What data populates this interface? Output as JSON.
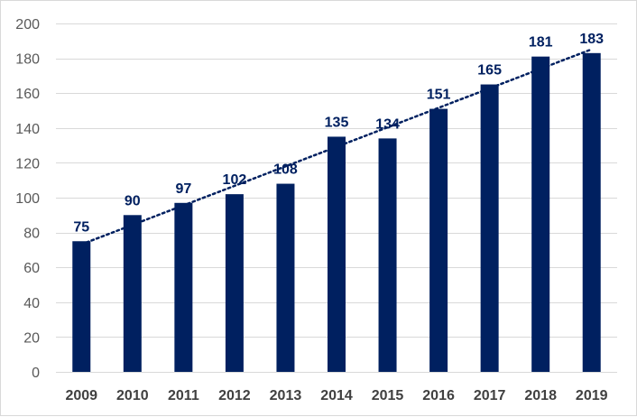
{
  "chart_data": {
    "type": "bar",
    "title": "",
    "xlabel": "",
    "ylabel": "",
    "categories": [
      "2009",
      "2010",
      "2011",
      "2012",
      "2013",
      "2014",
      "2015",
      "2016",
      "2017",
      "2018",
      "2019"
    ],
    "values": [
      75,
      90,
      97,
      102,
      108,
      135,
      134,
      151,
      165,
      181,
      183
    ],
    "data_labels": [
      "75",
      "90",
      "97",
      "102",
      "108",
      "135",
      "134",
      "151",
      "165",
      "181",
      "183"
    ],
    "ylim": [
      0,
      200
    ],
    "yticks": [
      0,
      20,
      40,
      60,
      80,
      100,
      120,
      140,
      160,
      180,
      200
    ],
    "grid": true,
    "legend": "none",
    "trendline": "linear, dotted",
    "colors": {
      "bar": "#002060",
      "label": "#002060",
      "trendline": "#002060",
      "grid": "#d9d9d9"
    }
  }
}
